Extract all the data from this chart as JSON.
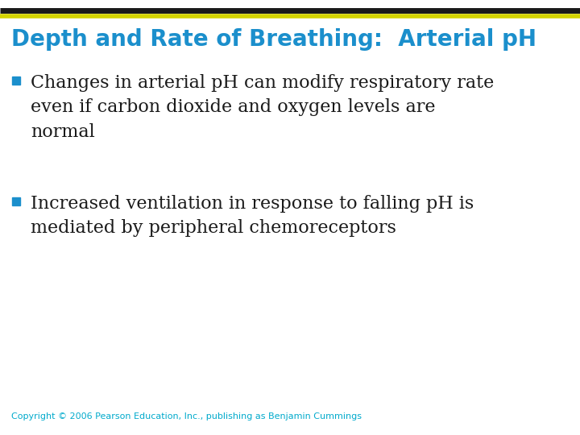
{
  "title": "Depth and Rate of Breathing:  Arterial pH",
  "title_color": "#1B8FCC",
  "title_fontsize": 20,
  "line1_color": "#1a1a1a",
  "line2_color": "#d4d400",
  "bullet1_line1": "Changes in arterial pH can modify respiratory rate",
  "bullet1_line2": "even if carbon dioxide and oxygen levels are",
  "bullet1_line3": "normal",
  "bullet2_line1": "Increased ventilation in response to falling pH is",
  "bullet2_line2": "mediated by peripheral chemoreceptors",
  "bullet_color": "#1a1a1a",
  "bullet_fontsize": 16,
  "bullet_marker_color": "#1B8FCC",
  "copyright": "Copyright © 2006 Pearson Education, Inc., publishing as Benjamin Cummings",
  "copyright_color": "#00AACC",
  "copyright_fontsize": 8,
  "bg_color": "#FFFFFF"
}
